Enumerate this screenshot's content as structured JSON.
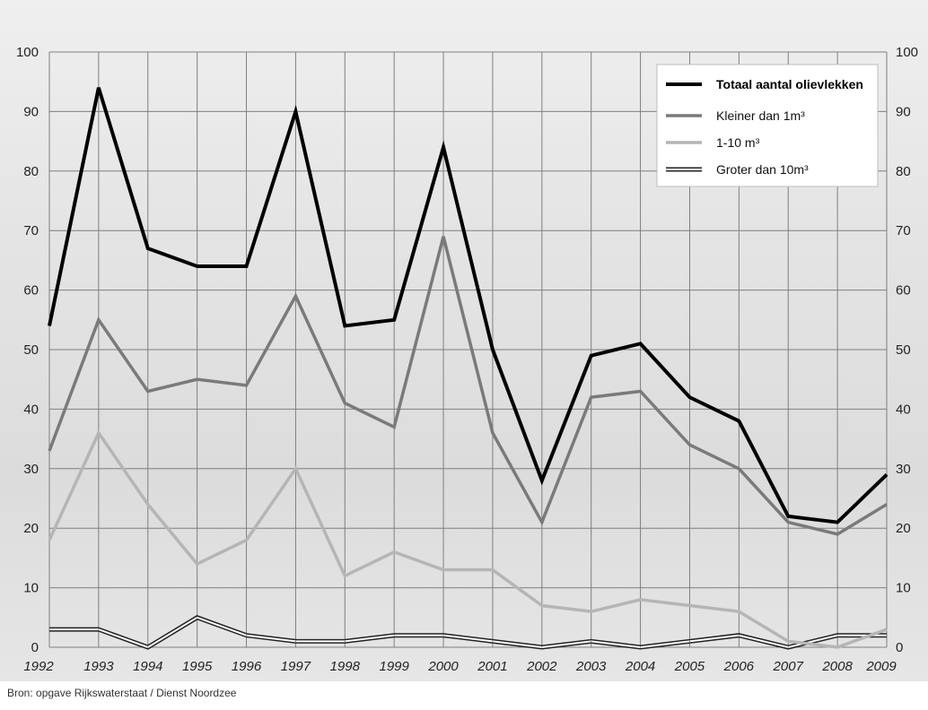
{
  "chart_data": {
    "type": "line",
    "x": [
      "1992",
      "1993",
      "1994",
      "1995",
      "1996",
      "1997",
      "1998",
      "1999",
      "2000",
      "2001",
      "2002",
      "2003",
      "2004",
      "2005",
      "2006",
      "2007",
      "2008",
      "2009"
    ],
    "ylim": [
      0,
      100
    ],
    "yticks": [
      "0",
      "10",
      "20",
      "30",
      "40",
      "50",
      "60",
      "70",
      "80",
      "90",
      "100"
    ],
    "grid": true,
    "legend_position": "top-right",
    "series": [
      {
        "name": "Totaal aantal olievlekken",
        "color": "#000000",
        "values": [
          54,
          94,
          67,
          64,
          64,
          90,
          54,
          55,
          84,
          50,
          28,
          49,
          51,
          42,
          38,
          22,
          21,
          29
        ]
      },
      {
        "name": "Kleiner dan 1m³",
        "color": "#7a7a7a",
        "values": [
          33,
          55,
          43,
          45,
          44,
          59,
          41,
          37,
          69,
          36,
          21,
          42,
          43,
          34,
          30,
          21,
          19,
          24
        ]
      },
      {
        "name": "1-10 m³",
        "color": "#b5b5b5",
        "values": [
          18,
          36,
          24,
          14,
          18,
          30,
          12,
          16,
          13,
          13,
          7,
          6,
          8,
          7,
          6,
          1,
          0,
          3
        ]
      },
      {
        "name": "Groter dan 10m³",
        "color": "#ffffff",
        "values": [
          3,
          3,
          0,
          5,
          2,
          1,
          1,
          2,
          2,
          1,
          0,
          1,
          0,
          1,
          2,
          0,
          2,
          2
        ]
      }
    ]
  },
  "source": "Bron: opgave Rijkswaterstaat / Dienst Noordzee"
}
